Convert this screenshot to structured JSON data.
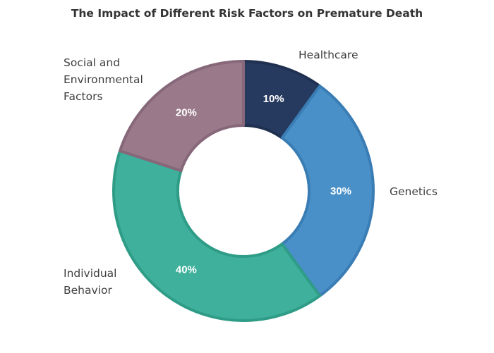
{
  "chart_data": {
    "type": "pie",
    "donut": true,
    "title": "The Impact of Different Risk Factors on Premature Death",
    "slices": [
      {
        "label": "Healthcare",
        "label_lines": [
          "Healthcare"
        ],
        "value": 10,
        "value_label": "10%",
        "color": "#253a5e",
        "edge": "#1f3050"
      },
      {
        "label": "Genetics",
        "label_lines": [
          "Genetics"
        ],
        "value": 30,
        "value_label": "30%",
        "color": "#4a90c8",
        "edge": "#3a7db5"
      },
      {
        "label": "Individual Behavior",
        "label_lines": [
          "Individual",
          "Behavior"
        ],
        "value": 40,
        "value_label": "40%",
        "color": "#3fb09b",
        "edge": "#2f9c87"
      },
      {
        "label": "Social and Environmental Factors",
        "label_lines": [
          "Social and",
          "Environmental",
          "Factors"
        ],
        "value": 20,
        "value_label": "20%",
        "color": "#9a7a8a",
        "edge": "#86687a"
      }
    ],
    "start_angle_deg": 0,
    "direction": "clockwise",
    "legend": "none"
  }
}
